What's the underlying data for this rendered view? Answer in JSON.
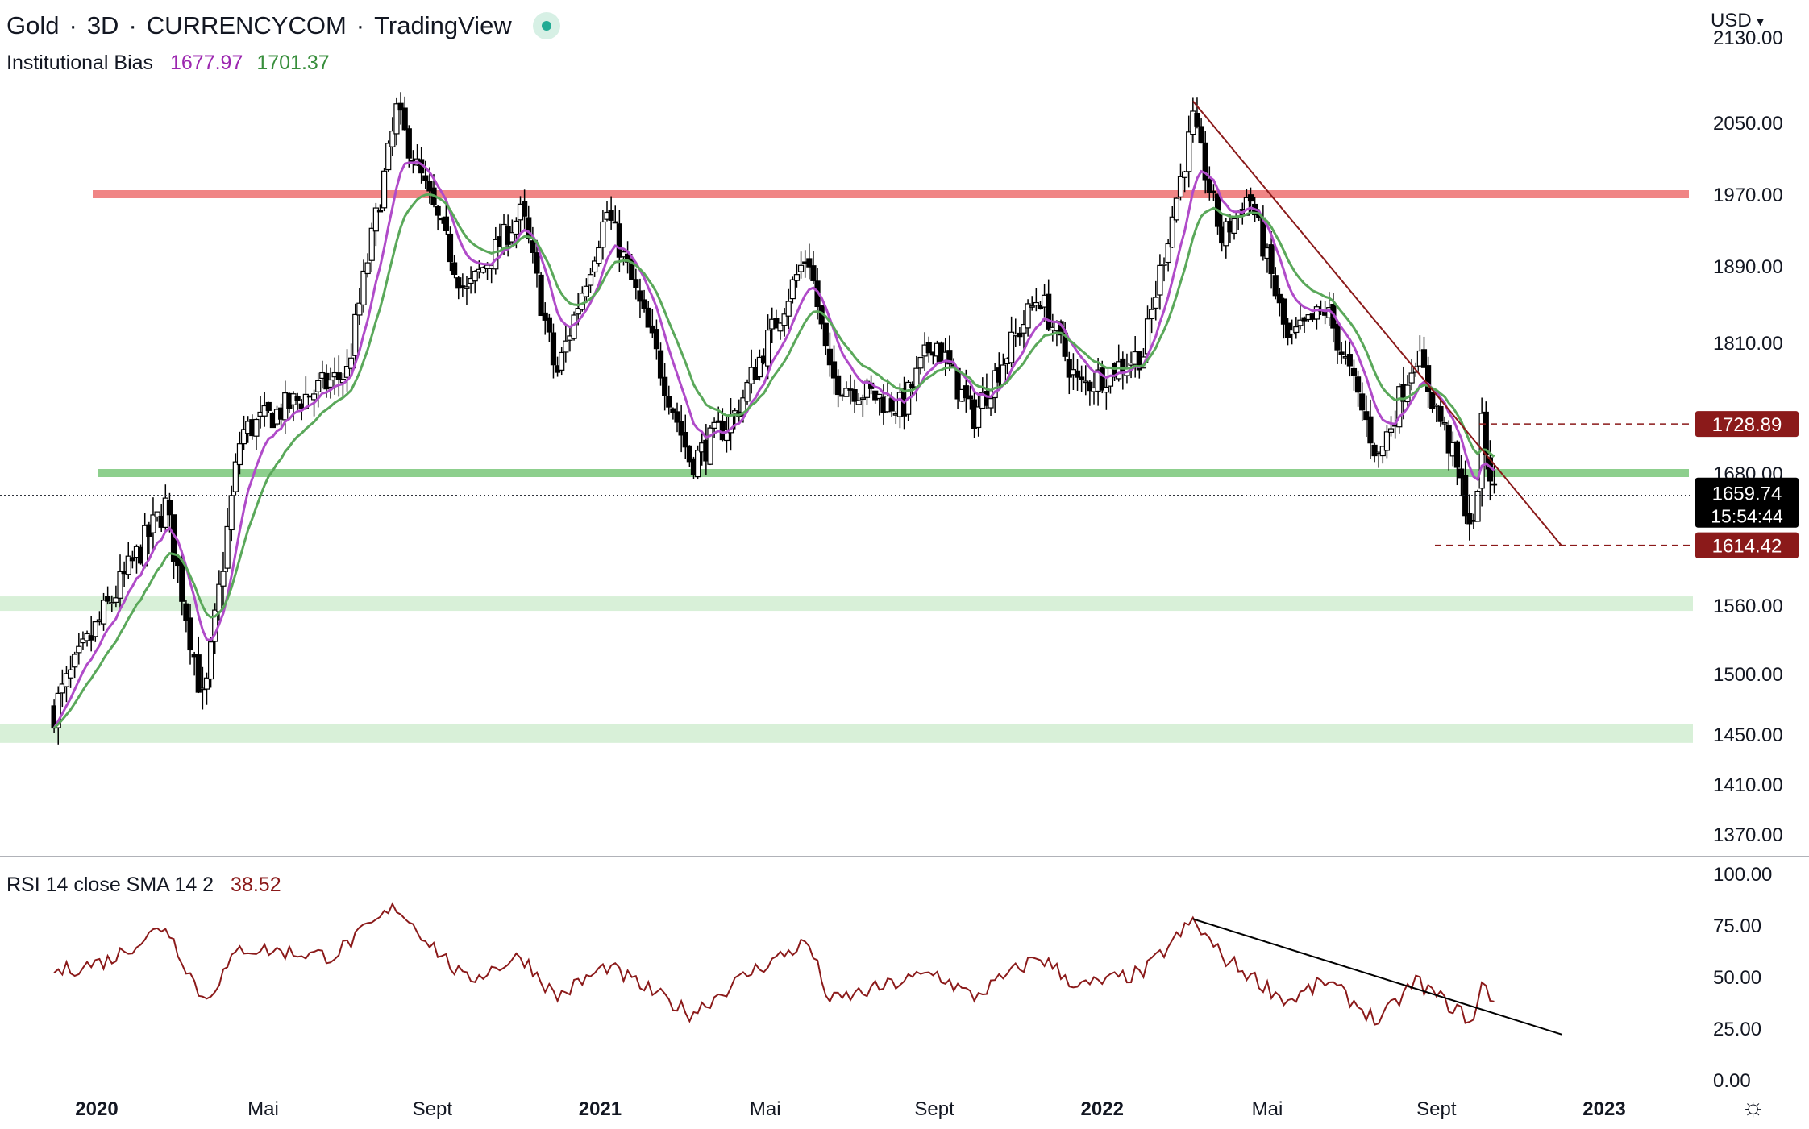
{
  "header": {
    "symbol": "Gold",
    "interval": "3D",
    "exchange": "CURRENCYCOM",
    "platform": "TradingView",
    "live_indicator_icon": "live-status-dot"
  },
  "indicator": {
    "name": "Institutional Bias",
    "value1": "1677.97",
    "value2": "1701.37"
  },
  "rsi": {
    "name": "RSI 14 close SMA 14 2",
    "value": "38.52"
  },
  "currency_selector": "USD",
  "settings_icon": "gear-icon",
  "colors": {
    "up_candle": "#ffffff",
    "down_candle": "#000000",
    "ema_fast": "#b04bc9",
    "ema_slow": "#5aa85a",
    "resistance": "#f08585",
    "support": "#8dcf8d",
    "support_zone": "#d8f0d8",
    "trendline": "#8b1a1a",
    "rsi_line": "#8b1a1a",
    "price_label_dark": "#8b1a1a",
    "current_price_bg": "#000000"
  },
  "chart_data": [
    {
      "type": "candlestick",
      "title": "Gold · 3D · CURRENCYCOM",
      "x_tick_labels": [
        "2020",
        "Mai",
        "Sept",
        "2021",
        "Mai",
        "Sept",
        "2022",
        "Mai",
        "Sept",
        "2023"
      ],
      "y_tick_labels": [
        "2130.00",
        "2050.00",
        "1970.00",
        "1890.00",
        "1810.00",
        "1680.00",
        "1560.00",
        "1500.00",
        "1450.00",
        "1410.00",
        "1370.00"
      ],
      "ylim": [
        1335,
        2140
      ],
      "horizontal_levels": [
        {
          "name": "resistance",
          "price": 1970
        },
        {
          "name": "support",
          "price": 1680
        },
        {
          "name": "support-zone",
          "price_low": 1555,
          "price_high": 1568
        },
        {
          "name": "support-zone",
          "price_low": 1443,
          "price_high": 1458
        }
      ],
      "price_labels": [
        "1728.89",
        "1614.42"
      ],
      "current_price": "1659.74",
      "countdown": "15:54:44",
      "anchor_points": [
        {
          "date": "2019-12-01",
          "price": 1470
        },
        {
          "date": "2020-01-05",
          "price": 1550
        },
        {
          "date": "2020-02-20",
          "price": 1650
        },
        {
          "date": "2020-03-19",
          "price": 1470
        },
        {
          "date": "2020-04-15",
          "price": 1720
        },
        {
          "date": "2020-07-01",
          "price": 1780
        },
        {
          "date": "2020-08-06",
          "price": 2060
        },
        {
          "date": "2020-09-25",
          "price": 1860
        },
        {
          "date": "2020-11-05",
          "price": 1950
        },
        {
          "date": "2020-11-30",
          "price": 1775
        },
        {
          "date": "2021-01-06",
          "price": 1950
        },
        {
          "date": "2021-03-08",
          "price": 1690
        },
        {
          "date": "2021-04-10",
          "price": 1740
        },
        {
          "date": "2021-06-01",
          "price": 1905
        },
        {
          "date": "2021-06-17",
          "price": 1775
        },
        {
          "date": "2021-08-09",
          "price": 1745
        },
        {
          "date": "2021-09-01",
          "price": 1815
        },
        {
          "date": "2021-09-29",
          "price": 1735
        },
        {
          "date": "2021-11-16",
          "price": 1860
        },
        {
          "date": "2021-12-15",
          "price": 1765
        },
        {
          "date": "2022-01-31",
          "price": 1800
        },
        {
          "date": "2022-03-08",
          "price": 2050
        },
        {
          "date": "2022-03-29",
          "price": 1920
        },
        {
          "date": "2022-04-18",
          "price": 1970
        },
        {
          "date": "2022-05-16",
          "price": 1810
        },
        {
          "date": "2022-06-13",
          "price": 1845
        },
        {
          "date": "2022-07-21",
          "price": 1695
        },
        {
          "date": "2022-08-17",
          "price": 1800
        },
        {
          "date": "2022-09-10",
          "price": 1710
        },
        {
          "date": "2022-09-28",
          "price": 1625
        },
        {
          "date": "2022-10-04",
          "price": 1725
        },
        {
          "date": "2022-10-13",
          "price": 1660
        }
      ],
      "trendline": [
        {
          "date": "2022-03-08",
          "price": 2070
        },
        {
          "date": "2022-12-01",
          "price": 1614
        }
      ]
    },
    {
      "type": "line",
      "title": "RSI 14 close SMA 14 2",
      "y_tick_labels": [
        "100.00",
        "75.00",
        "50.00",
        "25.00",
        "0.00"
      ],
      "ylim": [
        0,
        100
      ],
      "current_value": "38.52",
      "anchor_points": [
        {
          "date": "2019-12-01",
          "value": 52
        },
        {
          "date": "2020-01-10",
          "value": 58
        },
        {
          "date": "2020-02-20",
          "value": 75
        },
        {
          "date": "2020-03-19",
          "value": 38
        },
        {
          "date": "2020-04-15",
          "value": 64
        },
        {
          "date": "2020-06-20",
          "value": 60
        },
        {
          "date": "2020-08-06",
          "value": 84
        },
        {
          "date": "2020-09-25",
          "value": 48
        },
        {
          "date": "2020-11-05",
          "value": 60
        },
        {
          "date": "2020-11-30",
          "value": 40
        },
        {
          "date": "2021-01-06",
          "value": 55
        },
        {
          "date": "2021-03-08",
          "value": 32
        },
        {
          "date": "2021-04-20",
          "value": 52
        },
        {
          "date": "2021-06-01",
          "value": 67
        },
        {
          "date": "2021-06-17",
          "value": 38
        },
        {
          "date": "2021-09-01",
          "value": 52
        },
        {
          "date": "2021-09-29",
          "value": 40
        },
        {
          "date": "2021-11-16",
          "value": 60
        },
        {
          "date": "2021-12-15",
          "value": 45
        },
        {
          "date": "2022-01-31",
          "value": 52
        },
        {
          "date": "2022-03-08",
          "value": 77
        },
        {
          "date": "2022-03-29",
          "value": 60
        },
        {
          "date": "2022-05-16",
          "value": 38
        },
        {
          "date": "2022-06-13",
          "value": 48
        },
        {
          "date": "2022-07-21",
          "value": 28
        },
        {
          "date": "2022-08-17",
          "value": 48
        },
        {
          "date": "2022-09-28",
          "value": 28
        },
        {
          "date": "2022-10-04",
          "value": 46
        },
        {
          "date": "2022-10-13",
          "value": 38.52
        }
      ],
      "trendline": [
        {
          "date": "2022-03-08",
          "value": 78
        },
        {
          "date": "2022-12-01",
          "value": 22
        }
      ]
    }
  ]
}
